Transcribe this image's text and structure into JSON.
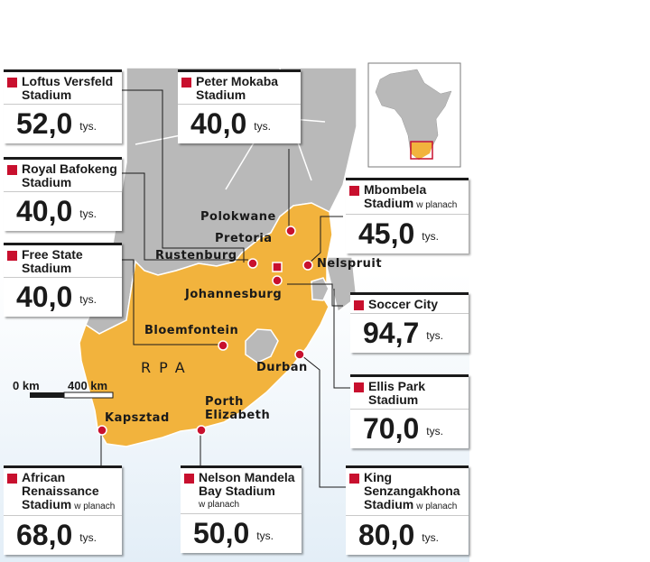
{
  "country_label": "RPA",
  "scale": {
    "start": "0 km",
    "end": "400 km"
  },
  "cities": [
    {
      "key": "polokwane",
      "name": "Polokwane"
    },
    {
      "key": "pretoria",
      "name": "Pretoria"
    },
    {
      "key": "rustenburg",
      "name": "Rustenburg"
    },
    {
      "key": "nelspruit",
      "name": "Nelspruit"
    },
    {
      "key": "johannesburg",
      "name": "Johannesburg"
    },
    {
      "key": "bloemfontein",
      "name": "Bloemfontein"
    },
    {
      "key": "durban",
      "name": "Durban"
    },
    {
      "key": "porth-elizabeth",
      "name": "Porth\nElizabeth"
    },
    {
      "key": "kapsztad",
      "name": "Kapsztad"
    }
  ],
  "stadiums": [
    {
      "key": "loftus",
      "name": "Loftus Versfeld Stadium",
      "capacity": "52,0",
      "unit": "tys.",
      "note": ""
    },
    {
      "key": "mokaba",
      "name": "Peter Mokaba Stadium",
      "capacity": "40,0",
      "unit": "tys.",
      "note": ""
    },
    {
      "key": "bafokeng",
      "name": "Royal Bafokeng Stadium",
      "capacity": "40,0",
      "unit": "tys.",
      "note": ""
    },
    {
      "key": "mbombela",
      "name": "Mbombela Stadium",
      "capacity": "45,0",
      "unit": "tys.",
      "note": "w planach"
    },
    {
      "key": "freestate",
      "name": "Free State Stadium",
      "capacity": "40,0",
      "unit": "tys.",
      "note": ""
    },
    {
      "key": "soccercity",
      "name": "Soccer City",
      "capacity": "94,7",
      "unit": "tys.",
      "note": ""
    },
    {
      "key": "ellispark",
      "name": "Ellis Park Stadium",
      "capacity": "70,0",
      "unit": "tys.",
      "note": ""
    },
    {
      "key": "african",
      "name": "African Renaissance Stadium",
      "capacity": "68,0",
      "unit": "tys.",
      "note": "w planach"
    },
    {
      "key": "mandela",
      "name": "Nelson Mandela Bay Stadium",
      "capacity": "50,0",
      "unit": "tys.",
      "note": "w planach"
    },
    {
      "key": "kingsenz",
      "name": "King Senzangakhona Stadium",
      "capacity": "80,0",
      "unit": "tys.",
      "note": "w planach"
    }
  ],
  "colors": {
    "land_rsa": "#f2b33d",
    "land_other": "#b9b9b9",
    "sea": "#e6f0f8",
    "marker": "#c8102e",
    "border": "#ffffff"
  }
}
